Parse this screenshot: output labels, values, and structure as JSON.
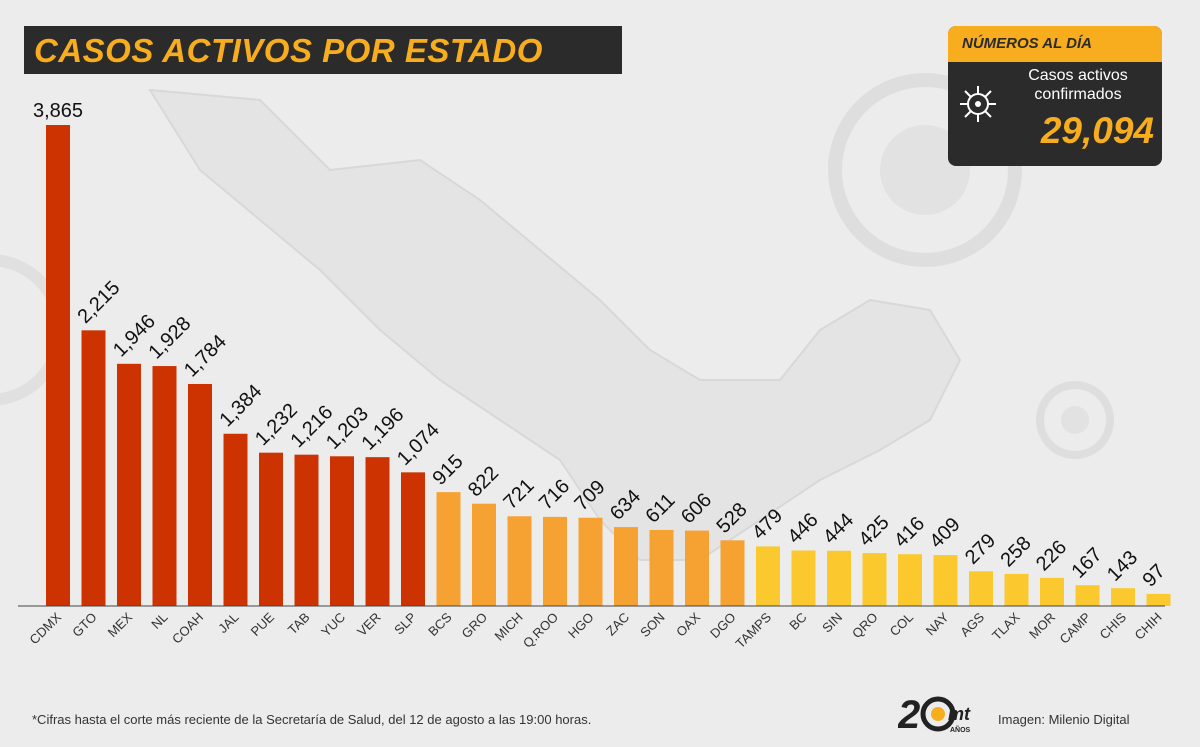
{
  "title": "CASOS ACTIVOS POR ESTADO",
  "stats": {
    "header": "NÚMEROS AL DÍA",
    "label_line1": "Casos activos",
    "label_line2": "confirmados",
    "value": "29,094"
  },
  "footnote": "*Cifras hasta el corte más reciente de la Secretaría de Salud, del 12 de agosto a las 19:00 horas.",
  "credit": "Imagen: Milenio Digital",
  "logo_text": "20 mt AÑOS",
  "colors": {
    "high": "#cc3300",
    "mid": "#f6a233",
    "low": "#fbc92e",
    "title_accent": "#f7ad1e",
    "panel": "#2b2b2b"
  },
  "chart_data": {
    "type": "bar",
    "title": "",
    "xlabel": "",
    "ylabel": "",
    "ylim": [
      0,
      3865
    ],
    "grid": false,
    "categories": [
      "CDMX",
      "GTO",
      "MEX",
      "NL",
      "COAH",
      "JAL",
      "PUE",
      "TAB",
      "YUC",
      "VER",
      "SLP",
      "BCS",
      "GRO",
      "MICH",
      "Q.ROO",
      "HGO",
      "ZAC",
      "SON",
      "OAX",
      "DGO",
      "TAMPS",
      "BC",
      "SIN",
      "QRO",
      "COL",
      "NAY",
      "AGS",
      "TLAX",
      "MOR",
      "CAMP",
      "CHIS",
      "CHIH"
    ],
    "values": [
      3865,
      2215,
      1946,
      1928,
      1784,
      1384,
      1232,
      1216,
      1203,
      1196,
      1074,
      915,
      822,
      721,
      716,
      709,
      634,
      611,
      606,
      528,
      479,
      446,
      444,
      425,
      416,
      409,
      279,
      258,
      226,
      167,
      143,
      97
    ],
    "labels": [
      "3,865",
      "2,215",
      "1,946",
      "1,928",
      "1,784",
      "1,384",
      "1,232",
      "1,216",
      "1,203",
      "1,196",
      "1,074",
      "915",
      "822",
      "721",
      "716",
      "709",
      "634",
      "611",
      "606",
      "528",
      "479",
      "446",
      "444",
      "425",
      "416",
      "409",
      "279",
      "258",
      "226",
      "167",
      "143",
      "97"
    ],
    "tiers": [
      "high",
      "high",
      "high",
      "high",
      "high",
      "high",
      "high",
      "high",
      "high",
      "high",
      "high",
      "mid",
      "mid",
      "mid",
      "mid",
      "mid",
      "mid",
      "mid",
      "mid",
      "mid",
      "low",
      "low",
      "low",
      "low",
      "low",
      "low",
      "low",
      "low",
      "low",
      "low",
      "low",
      "low"
    ]
  }
}
